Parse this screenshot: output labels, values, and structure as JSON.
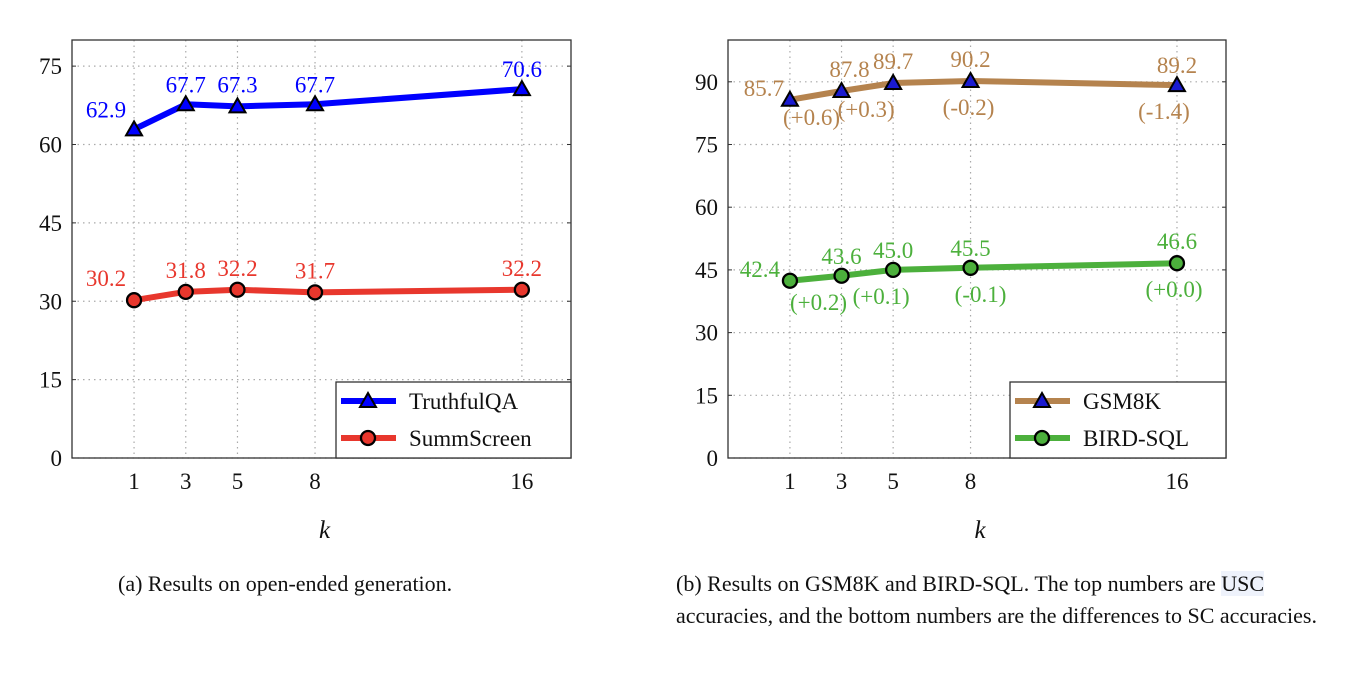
{
  "chart_data": [
    {
      "type": "line",
      "id": "a",
      "xlabel": "k",
      "ylabel": "",
      "x": [
        1,
        3,
        5,
        8,
        16
      ],
      "xticks": [
        1,
        3,
        5,
        8,
        16
      ],
      "yticks": [
        0,
        15,
        30,
        45,
        60,
        75
      ],
      "xlim": [
        -1.4,
        17.9
      ],
      "ylim": [
        0,
        80
      ],
      "grid": true,
      "legend_position": "bottom-right",
      "series": [
        {
          "name": "TruthfulQA",
          "color": "#0000ff",
          "marker": "triangle",
          "values": [
            62.9,
            67.7,
            67.3,
            67.7,
            70.6
          ],
          "labels": [
            "62.9",
            "67.7",
            "67.3",
            "67.7",
            "70.6"
          ]
        },
        {
          "name": "SummScreen",
          "color": "#e8372d",
          "marker": "circle",
          "values": [
            30.2,
            31.8,
            32.2,
            31.7,
            32.2
          ],
          "labels": [
            "30.2",
            "31.8",
            "32.2",
            "31.7",
            "32.2"
          ]
        }
      ],
      "caption": "(a) Results on open-ended generation."
    },
    {
      "type": "line",
      "id": "b",
      "xlabel": "k",
      "ylabel": "",
      "x": [
        1,
        3,
        5,
        8,
        16
      ],
      "xticks": [
        1,
        3,
        5,
        8,
        16
      ],
      "yticks": [
        0,
        15,
        30,
        45,
        60,
        75,
        90
      ],
      "xlim": [
        -1.4,
        17.9
      ],
      "ylim": [
        0,
        100
      ],
      "grid": true,
      "legend_position": "bottom-right",
      "series": [
        {
          "name": "GSM8K",
          "color": "#b5834e",
          "marker": "triangle",
          "values": [
            85.7,
            87.8,
            89.7,
            90.2,
            89.2
          ],
          "labels": [
            "85.7",
            "87.8",
            "89.7",
            "90.2",
            "89.2"
          ],
          "diffs": [
            "(+0.6)",
            "(+0.3)",
            "(-0.2)",
            "(-1.4)"
          ]
        },
        {
          "name": "BIRD-SQL",
          "color": "#4cb03c",
          "marker": "circle",
          "values": [
            42.4,
            43.6,
            45.0,
            45.5,
            46.6
          ],
          "labels": [
            "42.4",
            "43.6",
            "45.0",
            "45.5",
            "46.6"
          ],
          "diffs": [
            "(+0.2)",
            "(+0.1)",
            "(-0.1)",
            "(+0.0)"
          ]
        }
      ],
      "caption_parts": [
        "(b) Results on GSM8K and BIRD-SQL. The top numbers are ",
        "USC",
        " accuracies, and the bottom numbers are the differences to SC accuracies."
      ]
    }
  ]
}
